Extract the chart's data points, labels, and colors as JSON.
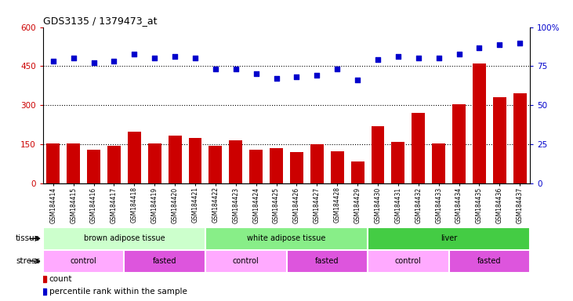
{
  "title": "GDS3135 / 1379473_at",
  "samples": [
    "GSM184414",
    "GSM184415",
    "GSM184416",
    "GSM184417",
    "GSM184418",
    "GSM184419",
    "GSM184420",
    "GSM184421",
    "GSM184422",
    "GSM184423",
    "GSM184424",
    "GSM184425",
    "GSM184426",
    "GSM184427",
    "GSM184428",
    "GSM184429",
    "GSM184430",
    "GSM184431",
    "GSM184432",
    "GSM184433",
    "GSM184434",
    "GSM184435",
    "GSM184436",
    "GSM184437"
  ],
  "counts": [
    155,
    155,
    130,
    145,
    200,
    155,
    185,
    175,
    145,
    165,
    130,
    135,
    120,
    150,
    125,
    85,
    220,
    160,
    270,
    155,
    305,
    460,
    330,
    345
  ],
  "percentiles": [
    78,
    80,
    77,
    78,
    83,
    80,
    81,
    80,
    73,
    73,
    70,
    67,
    68,
    69,
    73,
    66,
    79,
    81,
    80,
    80,
    83,
    87,
    89,
    90
  ],
  "ylim_left": [
    0,
    600
  ],
  "ylim_right": [
    0,
    100
  ],
  "yticks_left": [
    0,
    150,
    300,
    450,
    600
  ],
  "yticks_right": [
    0,
    25,
    50,
    75,
    100
  ],
  "bar_color": "#cc0000",
  "dot_color": "#0000cc",
  "grid_lines": [
    150,
    300,
    450
  ],
  "tissue_groups": [
    {
      "label": "brown adipose tissue",
      "start": 0,
      "end": 8,
      "color": "#ccffcc"
    },
    {
      "label": "white adipose tissue",
      "start": 8,
      "end": 16,
      "color": "#88ee88"
    },
    {
      "label": "liver",
      "start": 16,
      "end": 24,
      "color": "#44cc44"
    }
  ],
  "stress_groups": [
    {
      "label": "control",
      "start": 0,
      "end": 4,
      "color": "#ffaaff"
    },
    {
      "label": "fasted",
      "start": 4,
      "end": 8,
      "color": "#dd55dd"
    },
    {
      "label": "control",
      "start": 8,
      "end": 12,
      "color": "#ffaaff"
    },
    {
      "label": "fasted",
      "start": 12,
      "end": 16,
      "color": "#dd55dd"
    },
    {
      "label": "control",
      "start": 16,
      "end": 20,
      "color": "#ffaaff"
    },
    {
      "label": "fasted",
      "start": 20,
      "end": 24,
      "color": "#dd55dd"
    }
  ],
  "background_color": "#ffffff",
  "plot_bg_color": "#ffffff"
}
